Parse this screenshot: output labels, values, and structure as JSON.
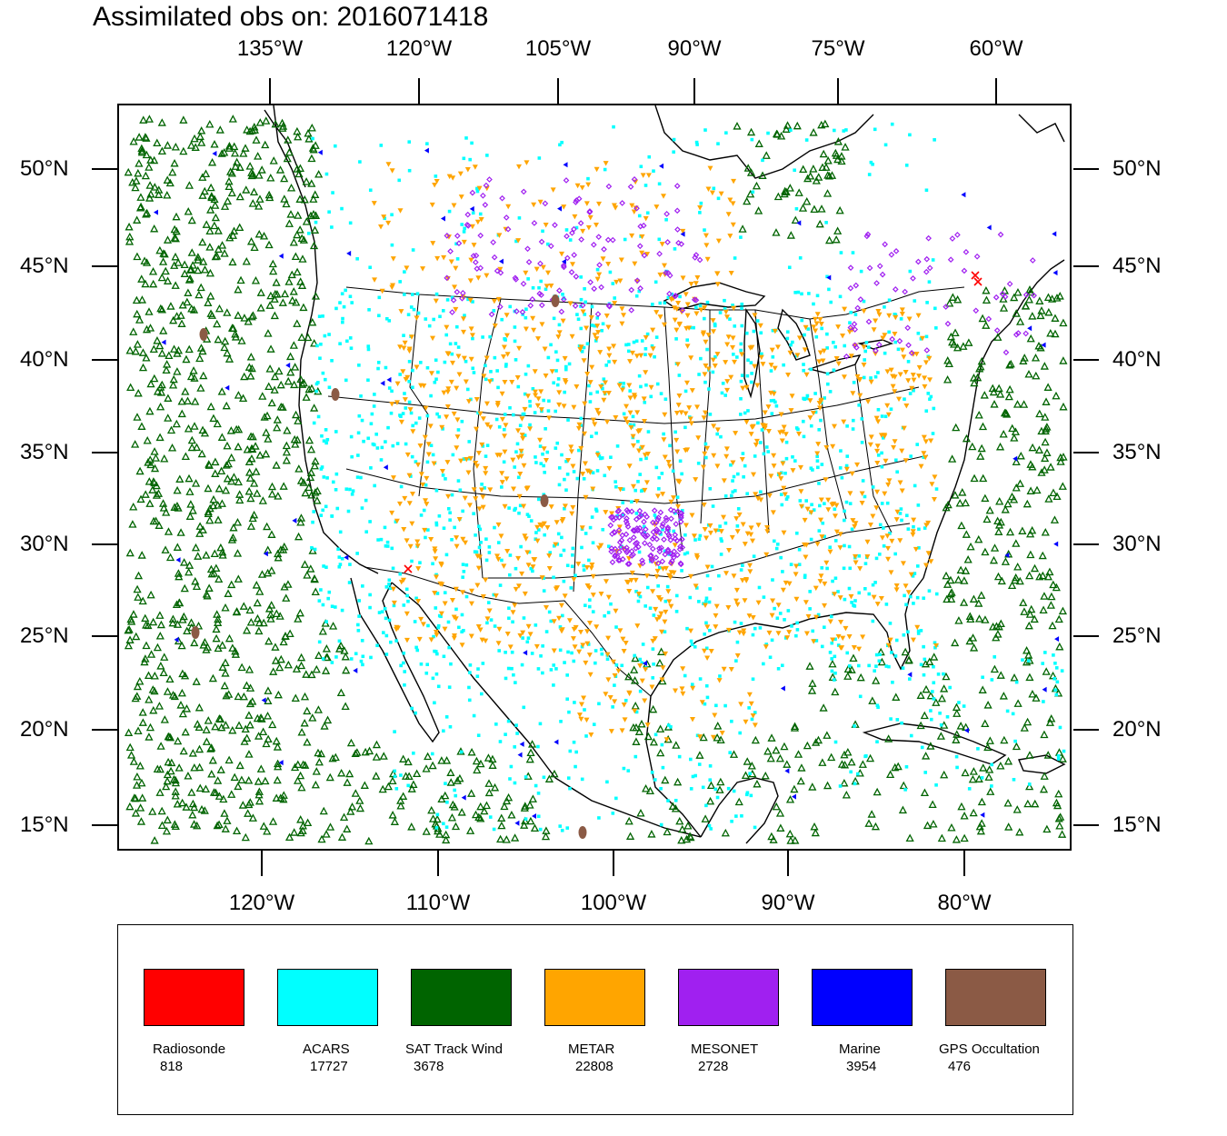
{
  "title": "Assimilated obs on: 2016071418",
  "axes": {
    "top_lon_labels": [
      "135°W",
      "120°W",
      "105°W",
      "90°W",
      "75°W",
      "60°W"
    ],
    "bottom_lon_labels": [
      "120°W",
      "110°W",
      "100°W",
      "90°W",
      "80°W"
    ],
    "lat_labels": [
      "50°N",
      "45°N",
      "40°N",
      "35°N",
      "30°N",
      "25°N",
      "20°N",
      "15°N"
    ]
  },
  "legend": {
    "items": [
      {
        "name": "Radiosonde",
        "count": "818",
        "color": "#ff0000"
      },
      {
        "name": "ACARS",
        "count": "17727",
        "color": "#00ffff"
      },
      {
        "name": "SAT Track Wind",
        "count": "3678",
        "color": "#006400"
      },
      {
        "name": "METAR",
        "count": "22808",
        "color": "#ffa500"
      },
      {
        "name": "MESONET",
        "count": "2728",
        "color": "#a020f0"
      },
      {
        "name": "Marine",
        "count": "3954",
        "color": "#0000ff"
      },
      {
        "name": "GPS Occultation",
        "count": "476",
        "color": "#8b5a45"
      }
    ]
  },
  "map": {
    "projection": "lambert-conformal-like",
    "markers": {
      "radiosonde": "x-icon",
      "acars": "square-dot-icon",
      "sat_track_wind": "triangle-outline-icon",
      "metar": "inverted-triangle-icon",
      "mesonet": "diamond-icon",
      "marine": "left-triangle-icon",
      "gps_occultation": "blob-icon"
    }
  }
}
